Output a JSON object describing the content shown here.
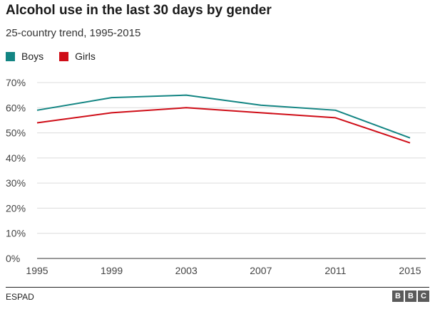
{
  "colors": {
    "boys": "#138583",
    "girls": "#cf0d17",
    "grid": "#dcdcdc",
    "axis": "#333333"
  },
  "chart_data": {
    "type": "line",
    "title": "Alcohol use in the last 30 days by gender",
    "subtitle": "25-country trend, 1995-2015",
    "x": [
      1995,
      1999,
      2003,
      2007,
      2011,
      2015
    ],
    "x_tick_labels": [
      "1995",
      "1999",
      "2003",
      "2007",
      "2011",
      "2015"
    ],
    "y_ticks": [
      0,
      10,
      20,
      30,
      40,
      50,
      60,
      70
    ],
    "y_tick_labels": [
      "0%",
      "10%",
      "20%",
      "30%",
      "40%",
      "50%",
      "60%",
      "70%"
    ],
    "ylim": [
      0,
      70
    ],
    "grid": true,
    "legend": "top-left",
    "series": [
      {
        "name": "Boys",
        "color_key": "boys",
        "values": [
          59,
          64,
          65,
          61,
          59,
          48
        ]
      },
      {
        "name": "Girls",
        "color_key": "girls",
        "values": [
          54,
          58,
          60,
          58,
          56,
          46
        ]
      }
    ]
  },
  "footer": {
    "source": "ESPAD",
    "brand": [
      "B",
      "B",
      "C"
    ]
  }
}
